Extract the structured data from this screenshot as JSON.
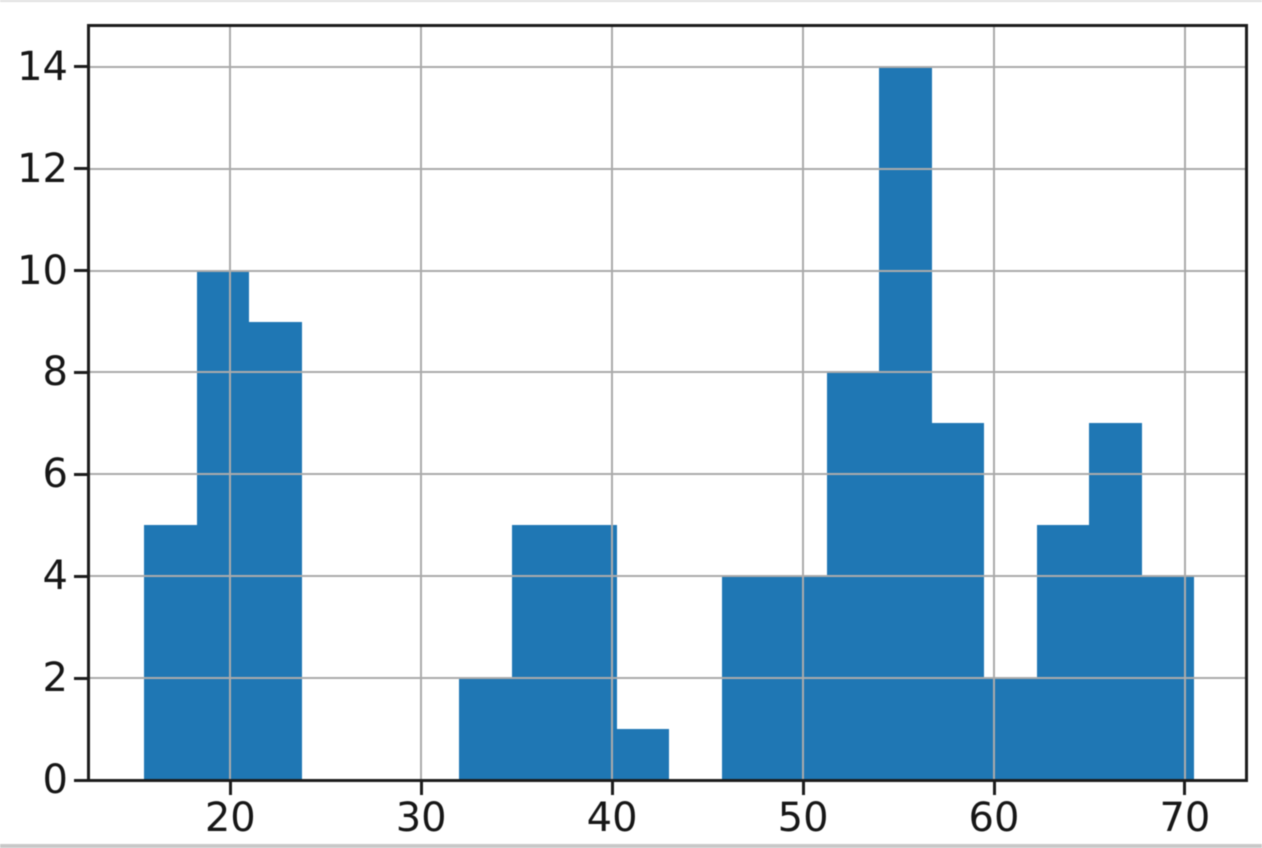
{
  "figure": {
    "background": "#ffffff",
    "bar_color": "#1f77b4",
    "grid_color": "#ababab",
    "spine_color": "#1c1c1c",
    "tick_color": "#1c1c1c",
    "tick_label_color": "#161616",
    "top_edge_artifact_color": "#d9d9d9",
    "bottom_edge_artifact_color": "#9b9b9b"
  },
  "chart_data": {
    "type": "bar",
    "subtype": "histogram",
    "title": "",
    "xlabel": "",
    "ylabel": "",
    "bin_width": 2.75,
    "bin_edges": [
      15.5,
      18.25,
      21.0,
      23.75,
      26.5,
      29.25,
      32.0,
      34.75,
      37.5,
      40.25,
      43.0,
      45.75,
      48.5,
      51.25,
      54.0,
      56.75,
      59.5,
      62.25,
      65.0,
      67.75,
      70.5
    ],
    "counts": [
      5,
      10,
      9,
      0,
      0,
      0,
      2,
      5,
      5,
      1,
      0,
      4,
      4,
      8,
      14,
      7,
      2,
      5,
      7,
      4
    ],
    "xticks": [
      20,
      30,
      40,
      50,
      60,
      70
    ],
    "yticks": [
      0,
      2,
      4,
      6,
      8,
      10,
      12,
      14
    ],
    "xlim": [
      12.6,
      73.2
    ],
    "ylim": [
      0,
      14.8
    ],
    "grid": true,
    "grid_above_bars": true,
    "legend": null
  }
}
